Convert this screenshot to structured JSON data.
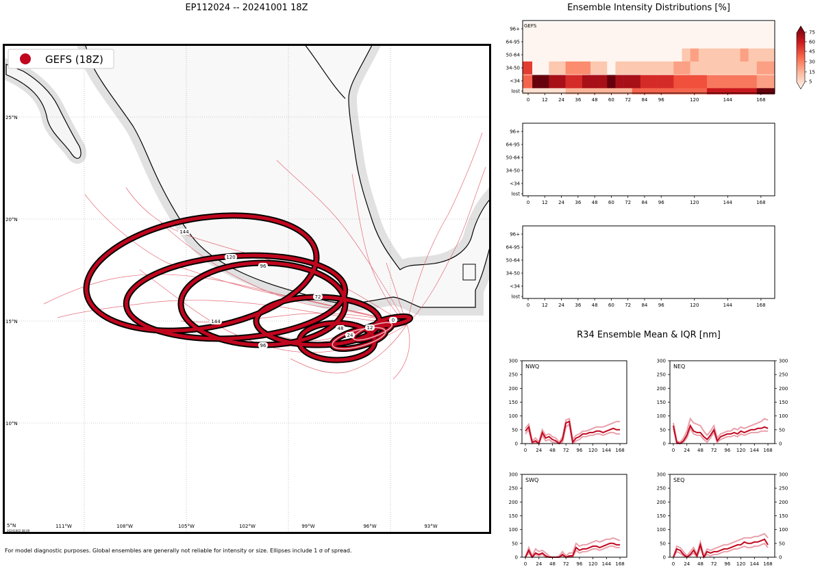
{
  "title": "EP112024 -- 20241001 18Z",
  "footnote": "For model diagnostic purposes. Global ensembles are generally not reliable for intensity or size. Ellipses include 1 σ of spread.",
  "map": {
    "legend_label": "GEFS (18Z)",
    "accent": "#c0061e",
    "lat_labels": [
      "25°N",
      "20°N",
      "15°N",
      "10°N",
      "5°N"
    ],
    "lon_labels": [
      "111°W",
      "108°W",
      "105°W",
      "102°W",
      "99°W",
      "96°W",
      "93°W"
    ],
    "stamp": "20241002 08:09",
    "ellipse_labels": [
      "0",
      "12",
      "24",
      "48",
      "72",
      "96",
      "96",
      "120",
      "144",
      "144"
    ]
  },
  "intensity": {
    "title": "Ensemble Intensity Distributions [%]",
    "panel_label": "GEFS",
    "ylabels": [
      "96+",
      "64-95",
      "50-64",
      "34-50",
      "<34",
      "lost"
    ],
    "xticks": [
      "0",
      "12",
      "24",
      "36",
      "48",
      "60",
      "72",
      "84",
      "96",
      "120",
      "144",
      "168"
    ],
    "colorbar_ticks": [
      "75",
      "60",
      "45",
      "30",
      "15",
      "5"
    ]
  },
  "r34": {
    "title": "R34 Ensemble Mean & IQR [nm]",
    "yticks": [
      "300",
      "250",
      "200",
      "150",
      "100",
      "50",
      "0"
    ],
    "xticks": [
      "0",
      "24",
      "48",
      "72",
      "96",
      "120",
      "144",
      "168"
    ],
    "quadrants": [
      "NWQ",
      "NEQ",
      "SWQ",
      "SEQ"
    ]
  },
  "chart_data": [
    {
      "type": "heatmap",
      "title": "Ensemble Intensity Distributions [%]",
      "panel": "GEFS",
      "x": [
        0,
        6,
        12,
        18,
        24,
        30,
        36,
        42,
        48,
        54,
        60,
        66,
        72,
        78,
        84,
        90,
        96,
        102,
        108,
        114,
        120,
        126,
        132,
        138,
        144,
        150,
        156,
        162,
        168
      ],
      "rows": [
        "lost",
        "<34",
        "34-50",
        "50-64",
        "64-95",
        "96+"
      ],
      "values": [
        [
          10,
          10,
          10,
          10,
          10,
          20,
          20,
          20,
          20,
          20,
          20,
          20,
          20,
          40,
          40,
          40,
          40,
          40,
          40,
          40,
          40,
          40,
          60,
          60,
          60,
          60,
          60,
          60,
          75
        ],
        [
          40,
          75,
          75,
          65,
          65,
          55,
          55,
          65,
          65,
          65,
          75,
          65,
          65,
          65,
          55,
          55,
          55,
          55,
          45,
          45,
          45,
          45,
          35,
          35,
          35,
          35,
          35,
          35,
          25
        ],
        [
          50,
          5,
          5,
          15,
          15,
          30,
          30,
          30,
          15,
          15,
          5,
          15,
          15,
          15,
          15,
          15,
          15,
          15,
          25,
          25,
          15,
          15,
          15,
          15,
          15,
          15,
          15,
          15,
          25
        ],
        [
          5,
          5,
          5,
          5,
          5,
          5,
          5,
          5,
          5,
          5,
          5,
          5,
          5,
          5,
          5,
          5,
          5,
          5,
          5,
          15,
          25,
          15,
          15,
          15,
          15,
          15,
          25,
          15,
          15
        ],
        [
          5,
          5,
          5,
          5,
          5,
          5,
          5,
          5,
          5,
          5,
          5,
          5,
          5,
          5,
          5,
          5,
          5,
          5,
          5,
          5,
          5,
          5,
          5,
          5,
          5,
          5,
          5,
          5,
          5
        ],
        [
          5,
          5,
          5,
          5,
          5,
          5,
          5,
          5,
          5,
          5,
          5,
          5,
          5,
          5,
          5,
          5,
          5,
          5,
          5,
          5,
          5,
          5,
          5,
          5,
          5,
          5,
          5,
          5,
          5
        ]
      ],
      "colorbar": [
        5,
        75
      ]
    },
    {
      "type": "line",
      "title": "R34 Ensemble Mean & IQR [nm]",
      "x": [
        0,
        6,
        12,
        18,
        24,
        30,
        36,
        42,
        48,
        54,
        60,
        66,
        72,
        78,
        84,
        90,
        96,
        102,
        108,
        114,
        120,
        126,
        132,
        138,
        144,
        150,
        156,
        162,
        168
      ],
      "ylim": [
        0,
        300
      ],
      "panels": [
        {
          "name": "NWQ",
          "mean": [
            45,
            60,
            5,
            10,
            0,
            40,
            20,
            25,
            15,
            10,
            0,
            15,
            75,
            80,
            5,
            20,
            25,
            35,
            35,
            40,
            40,
            45,
            45,
            40,
            45,
            50,
            55,
            50,
            50
          ],
          "q1": [
            35,
            50,
            0,
            5,
            0,
            30,
            10,
            15,
            5,
            5,
            0,
            5,
            60,
            70,
            0,
            10,
            15,
            25,
            25,
            30,
            30,
            35,
            35,
            30,
            35,
            40,
            40,
            35,
            35
          ],
          "q3": [
            55,
            70,
            10,
            20,
            5,
            50,
            30,
            35,
            25,
            20,
            5,
            25,
            85,
            90,
            15,
            30,
            35,
            45,
            45,
            50,
            55,
            60,
            60,
            60,
            65,
            70,
            75,
            80,
            80
          ]
        },
        {
          "name": "NEQ",
          "mean": [
            65,
            5,
            0,
            10,
            30,
            65,
            45,
            40,
            40,
            25,
            15,
            30,
            50,
            10,
            25,
            30,
            35,
            35,
            40,
            35,
            45,
            40,
            45,
            50,
            50,
            55,
            55,
            60,
            55
          ],
          "q1": [
            55,
            0,
            0,
            5,
            20,
            55,
            35,
            30,
            30,
            15,
            5,
            20,
            40,
            5,
            15,
            20,
            25,
            25,
            30,
            25,
            35,
            30,
            35,
            40,
            40,
            40,
            45,
            45,
            45
          ],
          "q3": [
            75,
            10,
            5,
            20,
            45,
            90,
            75,
            70,
            65,
            45,
            30,
            45,
            65,
            20,
            35,
            40,
            45,
            45,
            55,
            50,
            60,
            55,
            60,
            65,
            70,
            75,
            80,
            90,
            85
          ]
        },
        {
          "name": "SWQ",
          "mean": [
            0,
            25,
            0,
            15,
            10,
            15,
            5,
            0,
            0,
            0,
            0,
            10,
            0,
            5,
            5,
            35,
            25,
            30,
            30,
            35,
            40,
            40,
            35,
            40,
            45,
            50,
            50,
            45,
            45
          ],
          "q1": [
            0,
            15,
            0,
            10,
            5,
            10,
            0,
            0,
            0,
            0,
            0,
            5,
            0,
            0,
            0,
            25,
            15,
            20,
            20,
            25,
            30,
            30,
            25,
            30,
            35,
            40,
            40,
            35,
            35
          ],
          "q3": [
            0,
            35,
            5,
            30,
            20,
            25,
            15,
            5,
            0,
            0,
            5,
            20,
            5,
            15,
            15,
            50,
            40,
            45,
            45,
            50,
            55,
            60,
            55,
            60,
            65,
            65,
            70,
            65,
            60
          ]
        },
        {
          "name": "SEQ",
          "mean": [
            0,
            30,
            25,
            10,
            0,
            10,
            25,
            5,
            45,
            0,
            20,
            15,
            20,
            20,
            25,
            30,
            30,
            35,
            40,
            45,
            45,
            55,
            50,
            50,
            55,
            55,
            60,
            65,
            45
          ],
          "q1": [
            0,
            20,
            15,
            5,
            0,
            5,
            15,
            0,
            35,
            0,
            10,
            5,
            10,
            10,
            15,
            20,
            20,
            25,
            30,
            30,
            35,
            40,
            35,
            35,
            40,
            40,
            45,
            50,
            35
          ],
          "q3": [
            0,
            40,
            35,
            20,
            5,
            20,
            35,
            10,
            55,
            5,
            30,
            25,
            30,
            35,
            40,
            45,
            45,
            50,
            55,
            60,
            65,
            70,
            70,
            70,
            75,
            75,
            80,
            85,
            70
          ]
        }
      ]
    }
  ]
}
